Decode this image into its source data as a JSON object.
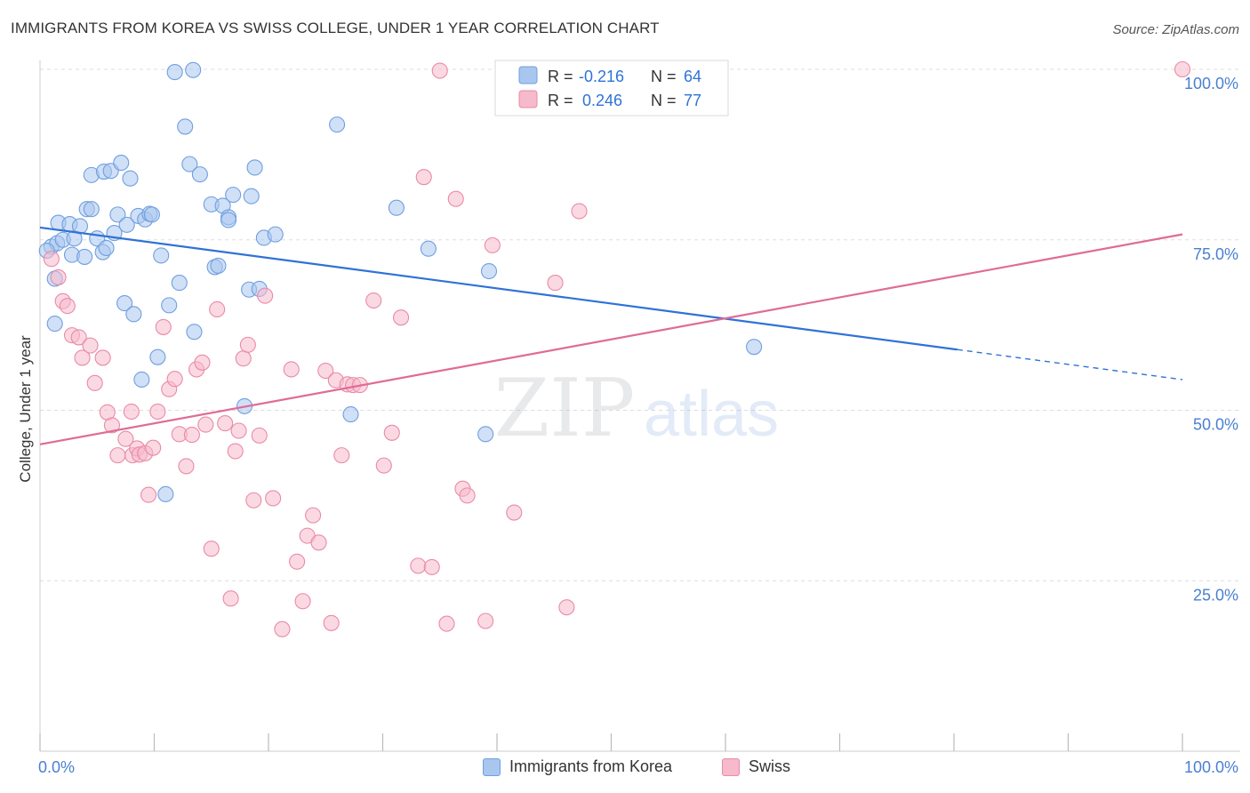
{
  "title": "IMMIGRANTS FROM KOREA VS SWISS COLLEGE, UNDER 1 YEAR CORRELATION CHART",
  "source": "Source: ZipAtlas.com",
  "watermark": {
    "zip": "ZIP",
    "atlas": "atlas"
  },
  "colors": {
    "korea_fill": "#a9c6ee",
    "korea_stroke": "#6f9fe0",
    "korea_line": "#2f72d6",
    "swiss_fill": "#f7b9cc",
    "swiss_stroke": "#e98aa8",
    "swiss_line": "#e06b96",
    "axis_label": "#4a7fd0",
    "grid": "#dddddd"
  },
  "legend": {
    "rows": [
      {
        "r_label": "R =",
        "r_value": "-0.216",
        "n_label": "N =",
        "n_value": "64"
      },
      {
        "r_label": "R =",
        "r_value": "0.246",
        "n_label": "N =",
        "n_value": "77"
      }
    ]
  },
  "legend_bottom": {
    "korea": "Immigrants from Korea",
    "swiss": "Swiss"
  },
  "chart_data": {
    "type": "scatter",
    "title": "IMMIGRANTS FROM KOREA VS SWISS COLLEGE, UNDER 1 YEAR CORRELATION CHART",
    "ylabel": "College, Under 1 year",
    "xlabel": "",
    "xlim": [
      0,
      100
    ],
    "ylim": [
      0,
      100
    ],
    "x_tick_labels": [
      "0.0%",
      "100.0%"
    ],
    "y_tick_labels": [
      "25.0%",
      "50.0%",
      "75.0%",
      "100.0%"
    ],
    "y_ticks": [
      25,
      50,
      75,
      100
    ],
    "grid": true,
    "legend_position": "top-center",
    "series": [
      {
        "name": "Immigrants from Korea",
        "r": -0.216,
        "n": 64,
        "trend": {
          "x": [
            0,
            80.3
          ],
          "y": [
            76.8,
            58.9
          ],
          "dashed_to": [
            100,
            54.5
          ]
        },
        "points": [
          [
            1,
            74
          ],
          [
            1.3,
            69.3
          ],
          [
            1.5,
            74.5
          ],
          [
            1.6,
            77.5
          ],
          [
            2,
            75
          ],
          [
            2.6,
            77.3
          ],
          [
            2.8,
            72.8
          ],
          [
            3,
            75.2
          ],
          [
            3.5,
            77
          ],
          [
            3.9,
            72.5
          ],
          [
            4.1,
            79.5
          ],
          [
            4.5,
            79.5
          ],
          [
            4.5,
            84.5
          ],
          [
            5,
            75.2
          ],
          [
            5.5,
            73.2
          ],
          [
            5.6,
            85
          ],
          [
            5.8,
            73.8
          ],
          [
            6.2,
            85.1
          ],
          [
            6.5,
            76
          ],
          [
            6.8,
            78.7
          ],
          [
            7.1,
            86.3
          ],
          [
            7.4,
            65.7
          ],
          [
            7.6,
            77.2
          ],
          [
            7.9,
            84
          ],
          [
            8.2,
            64.1
          ],
          [
            8.6,
            78.5
          ],
          [
            8.9,
            54.5
          ],
          [
            9.2,
            78
          ],
          [
            9.6,
            78.8
          ],
          [
            9.8,
            78.7
          ],
          [
            10.3,
            57.8
          ],
          [
            10.6,
            72.7
          ],
          [
            11,
            37.7
          ],
          [
            11.3,
            65.4
          ],
          [
            11.8,
            99.6
          ],
          [
            12.2,
            68.7
          ],
          [
            12.7,
            91.6
          ],
          [
            13.1,
            86.1
          ],
          [
            13.4,
            99.9
          ],
          [
            13.5,
            61.5
          ],
          [
            14,
            84.6
          ],
          [
            15,
            80.2
          ],
          [
            15.3,
            71
          ],
          [
            15.6,
            71.2
          ],
          [
            16,
            80
          ],
          [
            16.5,
            78.3
          ],
          [
            16.5,
            77.9
          ],
          [
            16.9,
            81.6
          ],
          [
            17.9,
            50.6
          ],
          [
            18.5,
            81.4
          ],
          [
            18.8,
            85.6
          ],
          [
            18.3,
            67.7
          ],
          [
            19.2,
            67.8
          ],
          [
            19.6,
            75.3
          ],
          [
            20.6,
            75.8
          ],
          [
            26,
            91.9
          ],
          [
            27.2,
            49.4
          ],
          [
            31.2,
            79.7
          ],
          [
            34,
            73.7
          ],
          [
            39,
            46.5
          ],
          [
            39.3,
            70.4
          ],
          [
            62.5,
            59.3
          ],
          [
            1.3,
            62.7
          ],
          [
            0.6,
            73.4
          ]
        ]
      },
      {
        "name": "Swiss",
        "r": 0.246,
        "n": 77,
        "trend": {
          "x": [
            0,
            100
          ],
          "y": [
            45,
            75.8
          ]
        },
        "points": [
          [
            1,
            72.2
          ],
          [
            1.6,
            69.5
          ],
          [
            2,
            66
          ],
          [
            2.4,
            65.3
          ],
          [
            2.8,
            61
          ],
          [
            3.4,
            60.7
          ],
          [
            3.7,
            57.7
          ],
          [
            4.4,
            59.5
          ],
          [
            4.8,
            54
          ],
          [
            5.5,
            57.7
          ],
          [
            5.9,
            49.7
          ],
          [
            6.3,
            47.8
          ],
          [
            6.8,
            43.4
          ],
          [
            7.5,
            45.8
          ],
          [
            8,
            49.8
          ],
          [
            8.1,
            43.4
          ],
          [
            8.5,
            44.4
          ],
          [
            8.7,
            43.5
          ],
          [
            9.2,
            43.7
          ],
          [
            9.5,
            37.6
          ],
          [
            9.9,
            44.5
          ],
          [
            10.3,
            49.8
          ],
          [
            10.8,
            62.2
          ],
          [
            11.3,
            53.1
          ],
          [
            11.8,
            54.6
          ],
          [
            12.2,
            46.5
          ],
          [
            12.8,
            41.8
          ],
          [
            13.3,
            46.4
          ],
          [
            13.7,
            56
          ],
          [
            14.2,
            57
          ],
          [
            14.5,
            47.9
          ],
          [
            15,
            29.7
          ],
          [
            15.5,
            64.8
          ],
          [
            16.2,
            48.1
          ],
          [
            16.7,
            22.4
          ],
          [
            17.1,
            44
          ],
          [
            17.4,
            47
          ],
          [
            17.8,
            57.6
          ],
          [
            18.2,
            59.6
          ],
          [
            18.7,
            36.8
          ],
          [
            19.2,
            46.3
          ],
          [
            19.7,
            66.8
          ],
          [
            20.4,
            37.1
          ],
          [
            21.2,
            17.9
          ],
          [
            22,
            56
          ],
          [
            22.5,
            27.8
          ],
          [
            23,
            22
          ],
          [
            23.4,
            31.6
          ],
          [
            23.9,
            34.6
          ],
          [
            24.4,
            30.6
          ],
          [
            25,
            55.8
          ],
          [
            25.5,
            18.8
          ],
          [
            25.9,
            54.4
          ],
          [
            26.4,
            43.4
          ],
          [
            26.9,
            53.8
          ],
          [
            27.4,
            53.7
          ],
          [
            28,
            53.7
          ],
          [
            29.2,
            66.1
          ],
          [
            30.1,
            41.9
          ],
          [
            30.8,
            46.7
          ],
          [
            31.6,
            63.6
          ],
          [
            33.1,
            27.2
          ],
          [
            33.6,
            84.2
          ],
          [
            34.3,
            27
          ],
          [
            35,
            99.8
          ],
          [
            35.6,
            18.7
          ],
          [
            36.4,
            81
          ],
          [
            37,
            38.5
          ],
          [
            37.4,
            37.5
          ],
          [
            39,
            19.1
          ],
          [
            39.6,
            74.2
          ],
          [
            41.5,
            35
          ],
          [
            45.1,
            68.7
          ],
          [
            46.1,
            21.1
          ],
          [
            47.2,
            79.2
          ],
          [
            50.7,
            99.9
          ],
          [
            100,
            100
          ]
        ]
      }
    ]
  }
}
